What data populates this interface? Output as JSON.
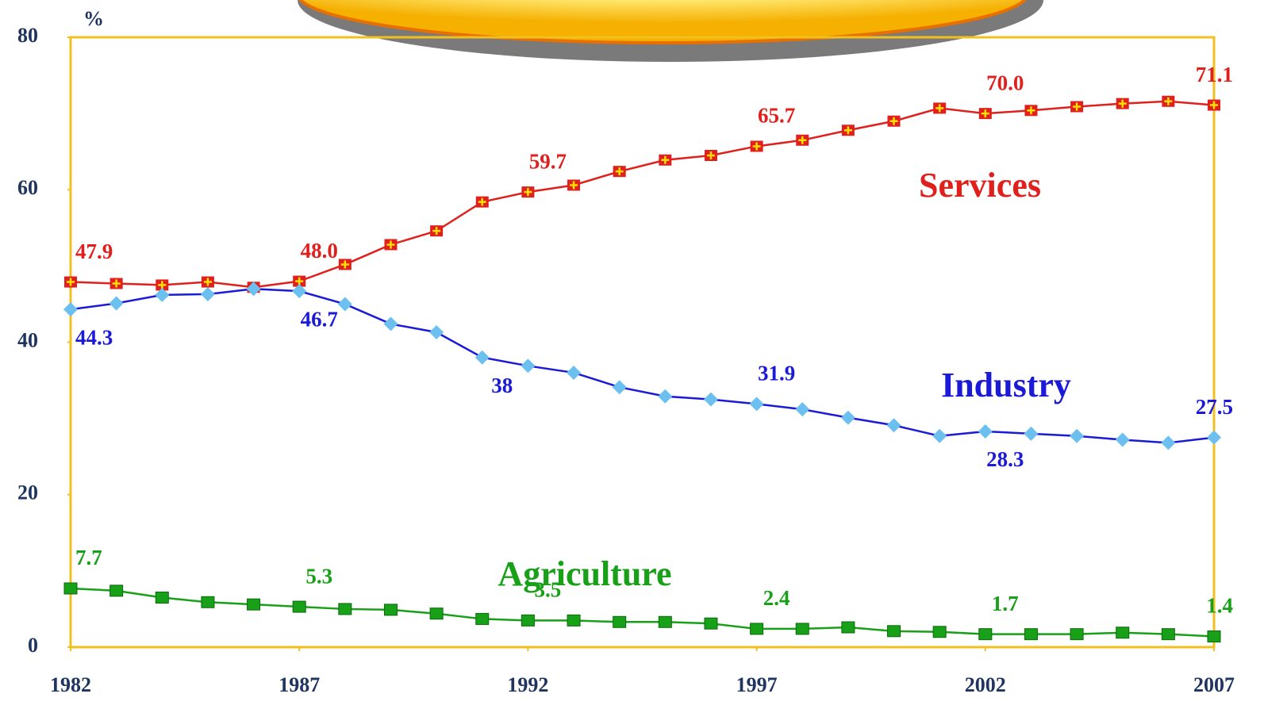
{
  "chart_data": {
    "type": "line",
    "y_unit": "%",
    "x": [
      1982,
      1983,
      1984,
      1985,
      1986,
      1987,
      1988,
      1989,
      1990,
      1991,
      1992,
      1993,
      1994,
      1995,
      1996,
      1997,
      1998,
      1999,
      2000,
      2001,
      2002,
      2003,
      2004,
      2005,
      2006,
      2007
    ],
    "xlim": [
      1982,
      2007
    ],
    "xticks": [
      1982,
      1987,
      1992,
      1997,
      2002,
      2007
    ],
    "ylim": [
      0,
      80
    ],
    "yticks": [
      0,
      20,
      40,
      60,
      80
    ],
    "series": [
      {
        "name": "Services",
        "color": "#e0201c",
        "values": [
          47.9,
          47.7,
          47.5,
          47.9,
          47.2,
          48.0,
          50.2,
          52.8,
          54.6,
          58.4,
          59.7,
          60.6,
          62.4,
          63.9,
          64.5,
          65.7,
          66.5,
          67.8,
          69.0,
          70.7,
          70.0,
          70.4,
          70.9,
          71.3,
          71.6,
          71.1
        ],
        "value_labels": [
          "47.9",
          null,
          null,
          null,
          null,
          "48.0",
          null,
          null,
          null,
          null,
          "59.7",
          null,
          null,
          null,
          null,
          "65.7",
          null,
          null,
          null,
          null,
          "70.0",
          null,
          null,
          null,
          null,
          "71.1"
        ]
      },
      {
        "name": "Industry",
        "color": "#1a1ad8",
        "values": [
          44.3,
          45.1,
          46.2,
          46.3,
          47.0,
          46.7,
          45.0,
          42.4,
          41.3,
          38,
          36.9,
          36.0,
          34.1,
          32.9,
          32.5,
          31.9,
          31.2,
          30.1,
          29.1,
          27.7,
          28.3,
          28.0,
          27.7,
          27.2,
          26.8,
          27.5
        ],
        "value_labels": [
          "44.3",
          null,
          null,
          null,
          null,
          "46.7",
          null,
          null,
          null,
          "38",
          null,
          null,
          null,
          null,
          null,
          "31.9",
          null,
          null,
          null,
          null,
          "28.3",
          null,
          null,
          null,
          null,
          "27.5"
        ]
      },
      {
        "name": "Agriculture",
        "color": "#18a018",
        "values": [
          7.7,
          7.4,
          6.5,
          5.9,
          5.6,
          5.3,
          5.0,
          4.9,
          4.4,
          3.7,
          3.5,
          3.5,
          3.3,
          3.3,
          3.1,
          2.4,
          2.4,
          2.6,
          2.1,
          2.0,
          1.7,
          1.7,
          1.7,
          1.9,
          1.7,
          1.4
        ],
        "value_labels": [
          "7.7",
          null,
          null,
          null,
          null,
          "5.3",
          null,
          null,
          null,
          null,
          "3.5",
          null,
          null,
          null,
          null,
          "2.4",
          null,
          null,
          null,
          null,
          "1.7",
          null,
          null,
          null,
          null,
          "1.4"
        ]
      }
    ]
  }
}
